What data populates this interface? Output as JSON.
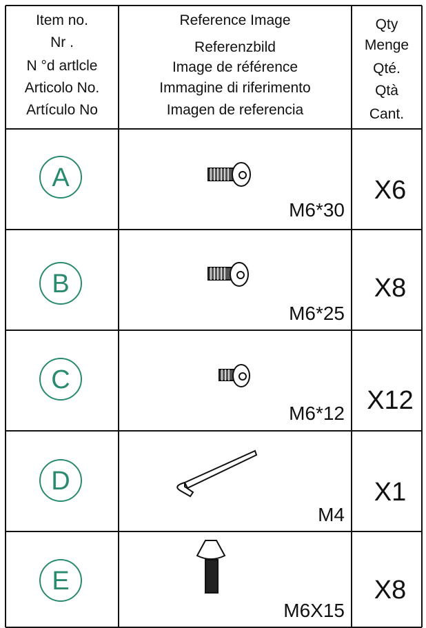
{
  "header": {
    "columns": [
      {
        "lines": [
          "Item no.",
          "Nr  .",
          "N °d artlcle",
          "Articolo No.",
          "Artículo No"
        ]
      },
      {
        "lines": [
          "Reference Image",
          "Referenzbild",
          "Image de référence",
          "Immagine di riferimento",
          "Imagen de referencia"
        ]
      },
      {
        "lines": [
          "Qty",
          "Menge",
          "Qté.",
          "Qtà",
          "Cant."
        ]
      }
    ]
  },
  "rows": [
    {
      "item": "A",
      "size": "M6*30",
      "qty": "X6"
    },
    {
      "item": "B",
      "size": "M6*25",
      "qty": "X8"
    },
    {
      "item": "C",
      "size": "M6*12",
      "qty": "X12"
    },
    {
      "item": "D",
      "size": "M4",
      "qty": "X1"
    },
    {
      "item": "E",
      "size": "M6X15",
      "qty": "X8"
    }
  ]
}
